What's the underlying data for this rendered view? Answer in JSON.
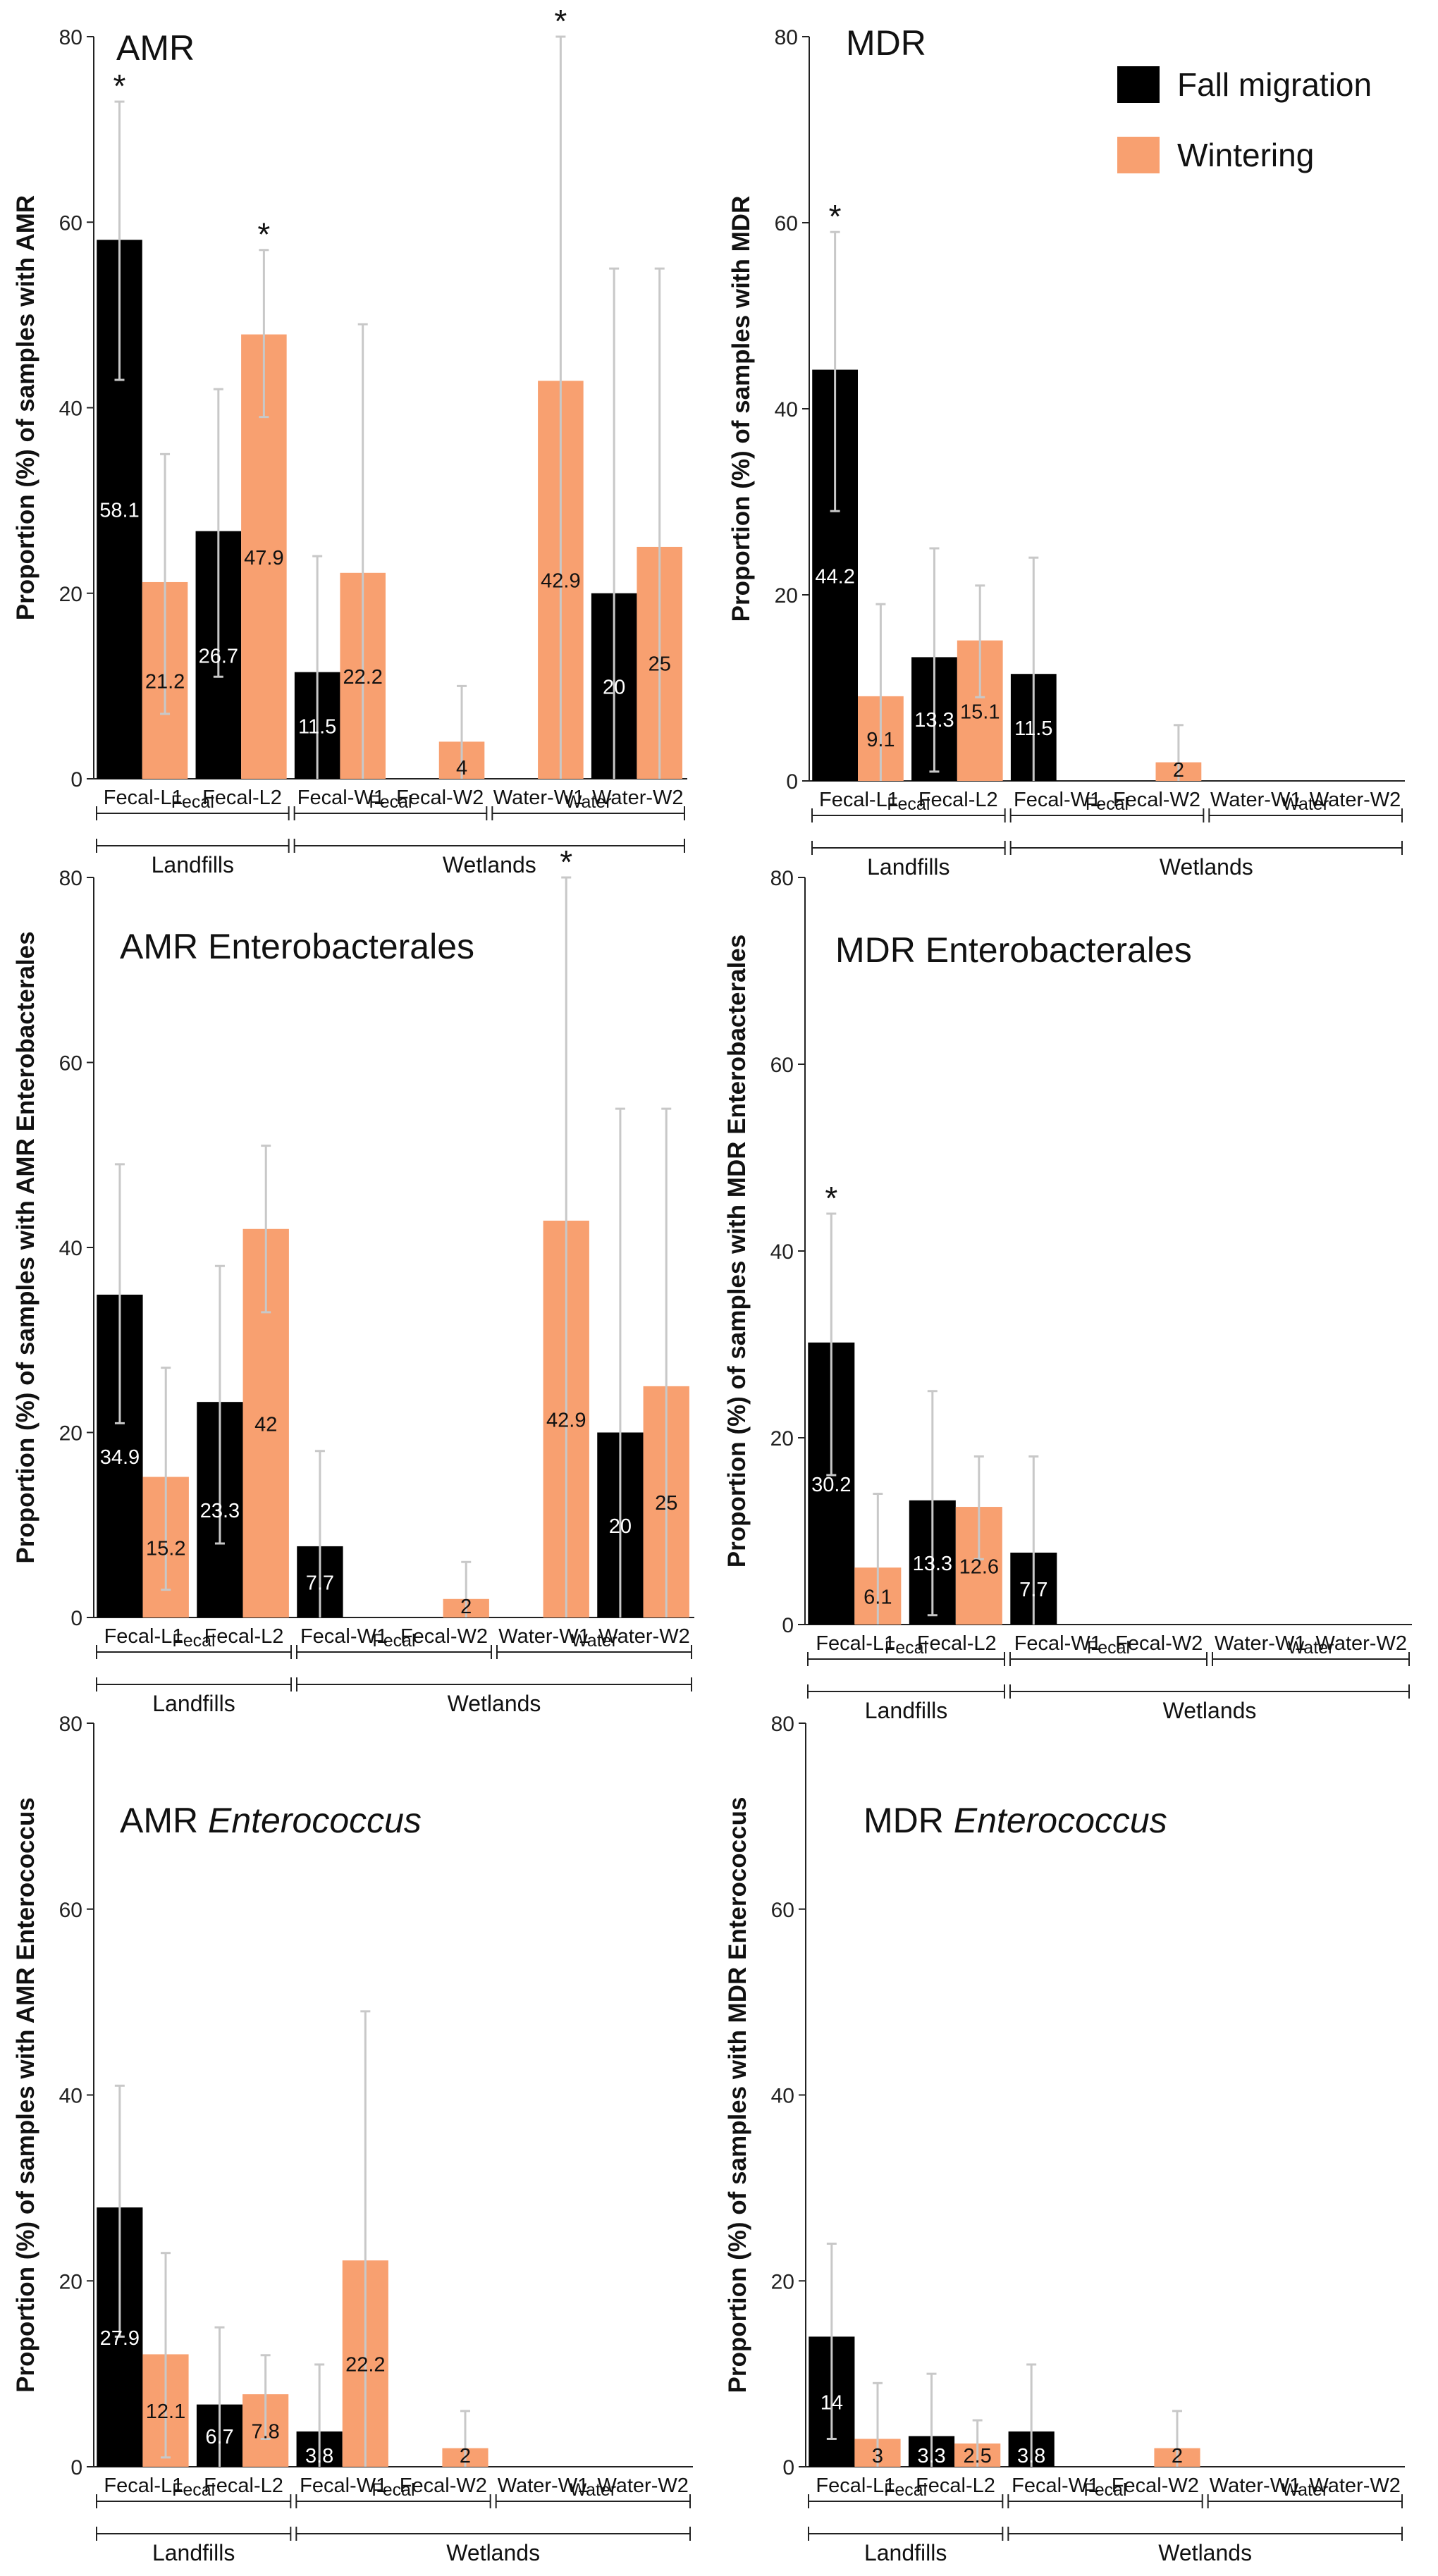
{
  "colors": {
    "fall": "#000000",
    "winter": "#f8a070",
    "error_bar": "#c8c8c8",
    "axis": "#222222"
  },
  "legend": {
    "items": [
      {
        "label": "Fall migration",
        "color": "#000000"
      },
      {
        "label": "Wintering",
        "color": "#f8a070"
      }
    ]
  },
  "chart_data": [
    {
      "type": "bar",
      "title": "AMR",
      "title_italic": "",
      "ylabel": "Proportion (%) of samples with AMR",
      "ylim": [
        0,
        80
      ],
      "yticks": [
        0,
        20,
        40,
        60,
        80
      ],
      "categories": [
        "Fecal-L1",
        "Fecal-L2",
        "Fecal-W1",
        "Fecal-W2",
        "Water-W1",
        "Water-W2"
      ],
      "groups": [
        {
          "label": "Landfills",
          "sublabels": [
            "Fecal"
          ]
        },
        {
          "label": "Wetlands",
          "sublabels": [
            "Fecal",
            "Water"
          ]
        }
      ],
      "series": [
        {
          "name": "Fall migration",
          "values": [
            58.1,
            26.7,
            11.5,
            0,
            0,
            20
          ],
          "ci_low": [
            43,
            11,
            0,
            null,
            null,
            0
          ],
          "ci_high": [
            73,
            42,
            24,
            null,
            null,
            55
          ]
        },
        {
          "name": "Wintering",
          "values": [
            21.2,
            47.9,
            22.2,
            4,
            42.9,
            25
          ],
          "ci_low": [
            7,
            39,
            0,
            0,
            0,
            0
          ],
          "ci_high": [
            35,
            57,
            49,
            10,
            80,
            55
          ]
        }
      ],
      "value_labels": [
        [
          "58.1",
          "26.7",
          "11.5",
          "",
          "",
          "20"
        ],
        [
          "21.2",
          "47.9",
          "22.2",
          "4",
          "42.9",
          "25"
        ]
      ],
      "significance": [
        [
          "*",
          "",
          "",
          "",
          "",
          ""
        ],
        [
          "",
          "*",
          "",
          "",
          "*",
          ""
        ]
      ]
    },
    {
      "type": "bar",
      "title": "MDR",
      "title_italic": "",
      "ylabel": "Proportion (%) of samples with MDR",
      "ylim": [
        0,
        80
      ],
      "yticks": [
        0,
        20,
        40,
        60,
        80
      ],
      "categories": [
        "Fecal-L1",
        "Fecal-L2",
        "Fecal-W1",
        "Fecal-W2",
        "Water-W1",
        "Water-W2"
      ],
      "groups": [
        {
          "label": "Landfills",
          "sublabels": [
            "Fecal"
          ]
        },
        {
          "label": "Wetlands",
          "sublabels": [
            "Fecal",
            "Water"
          ]
        }
      ],
      "series": [
        {
          "name": "Fall migration",
          "values": [
            44.2,
            13.3,
            11.5,
            0,
            0,
            0
          ],
          "ci_low": [
            29,
            1,
            0,
            null,
            null,
            null
          ],
          "ci_high": [
            59,
            25,
            24,
            null,
            null,
            null
          ]
        },
        {
          "name": "Wintering",
          "values": [
            9.1,
            15.1,
            0,
            2,
            0,
            0
          ],
          "ci_low": [
            0,
            9,
            null,
            0,
            null,
            null
          ],
          "ci_high": [
            19,
            21,
            null,
            6,
            null,
            null
          ]
        }
      ],
      "value_labels": [
        [
          "44.2",
          "13.3",
          "11.5",
          "",
          "",
          ""
        ],
        [
          "9.1",
          "15.1",
          "",
          "2",
          "",
          ""
        ]
      ],
      "significance": [
        [
          "*",
          "",
          "",
          "",
          "",
          ""
        ],
        [
          "",
          "",
          "",
          "",
          "",
          ""
        ]
      ]
    },
    {
      "type": "bar",
      "title": "AMR Enterobacterales",
      "title_italic": "",
      "ylabel": "Proportion (%) of samples with AMR Enterobacterales",
      "ylim": [
        0,
        80
      ],
      "yticks": [
        0,
        20,
        40,
        60,
        80
      ],
      "categories": [
        "Fecal-L1",
        "Fecal-L2",
        "Fecal-W1",
        "Fecal-W2",
        "Water-W1",
        "Water-W2"
      ],
      "groups": [
        {
          "label": "Landfills",
          "sublabels": [
            "Fecal"
          ]
        },
        {
          "label": "Wetlands",
          "sublabels": [
            "Fecal",
            "Water"
          ]
        }
      ],
      "series": [
        {
          "name": "Fall migration",
          "values": [
            34.9,
            23.3,
            7.7,
            0,
            0,
            20
          ],
          "ci_low": [
            21,
            8,
            0,
            null,
            null,
            0
          ],
          "ci_high": [
            49,
            38,
            18,
            null,
            null,
            55
          ]
        },
        {
          "name": "Wintering",
          "values": [
            15.2,
            42,
            0,
            2,
            42.9,
            25
          ],
          "ci_low": [
            3,
            33,
            null,
            0,
            0,
            0
          ],
          "ci_high": [
            27,
            51,
            null,
            6,
            80,
            55
          ]
        }
      ],
      "value_labels": [
        [
          "34.9",
          "23.3",
          "7.7",
          "",
          "",
          "20"
        ],
        [
          "15.2",
          "42",
          "",
          "2",
          "42.9",
          "25"
        ]
      ],
      "significance": [
        [
          "",
          "",
          "",
          "",
          "",
          ""
        ],
        [
          "",
          "",
          "",
          "",
          "*",
          ""
        ]
      ]
    },
    {
      "type": "bar",
      "title": "MDR Enterobacterales",
      "title_italic": "",
      "ylabel": "Proportion (%) of samples with MDR Enterobacterales",
      "ylim": [
        0,
        80
      ],
      "yticks": [
        0,
        20,
        40,
        60,
        80
      ],
      "categories": [
        "Fecal-L1",
        "Fecal-L2",
        "Fecal-W1",
        "Fecal-W2",
        "Water-W1",
        "Water-W2"
      ],
      "groups": [
        {
          "label": "Landfills",
          "sublabels": [
            "Fecal"
          ]
        },
        {
          "label": "Wetlands",
          "sublabels": [
            "Fecal",
            "Water"
          ]
        }
      ],
      "series": [
        {
          "name": "Fall migration",
          "values": [
            30.2,
            13.3,
            7.7,
            0,
            0,
            0
          ],
          "ci_low": [
            16,
            1,
            0,
            null,
            null,
            null
          ],
          "ci_high": [
            44,
            25,
            18,
            null,
            null,
            null
          ]
        },
        {
          "name": "Wintering",
          "values": [
            6.1,
            12.6,
            0,
            0,
            0,
            0
          ],
          "ci_low": [
            0,
            7,
            null,
            null,
            null,
            null
          ],
          "ci_high": [
            14,
            18,
            null,
            null,
            null,
            null
          ]
        }
      ],
      "value_labels": [
        [
          "30.2",
          "13.3",
          "7.7",
          "",
          "",
          ""
        ],
        [
          "6.1",
          "12.6",
          "",
          "",
          "",
          ""
        ]
      ],
      "significance": [
        [
          "*",
          "",
          "",
          "",
          "",
          ""
        ],
        [
          "",
          "",
          "",
          "",
          "",
          ""
        ]
      ]
    },
    {
      "type": "bar",
      "title": "AMR ",
      "title_italic": "Enterococcus",
      "ylabel": "Proportion (%) of samples with AMR Enterococcus",
      "ylim": [
        0,
        80
      ],
      "yticks": [
        0,
        20,
        40,
        60,
        80
      ],
      "categories": [
        "Fecal-L1",
        "Fecal-L2",
        "Fecal-W1",
        "Fecal-W2",
        "Water-W1",
        "Water-W2"
      ],
      "groups": [
        {
          "label": "Landfills",
          "sublabels": [
            "Fecal"
          ]
        },
        {
          "label": "Wetlands",
          "sublabels": [
            "Fecal",
            "Water"
          ]
        }
      ],
      "series": [
        {
          "name": "Fall migration",
          "values": [
            27.9,
            6.7,
            3.8,
            0,
            0,
            0
          ],
          "ci_low": [
            14,
            0,
            0,
            null,
            null,
            null
          ],
          "ci_high": [
            41,
            15,
            11,
            null,
            null,
            null
          ]
        },
        {
          "name": "Wintering",
          "values": [
            12.1,
            7.8,
            22.2,
            2,
            0,
            0
          ],
          "ci_low": [
            1,
            3,
            0,
            0,
            null,
            null
          ],
          "ci_high": [
            23,
            12,
            49,
            6,
            null,
            null
          ]
        }
      ],
      "value_labels": [
        [
          "27.9",
          "6.7",
          "3.8",
          "",
          "",
          ""
        ],
        [
          "12.1",
          "7.8",
          "22.2",
          "2",
          "",
          ""
        ]
      ],
      "significance": [
        [
          "",
          "",
          "",
          "",
          "",
          ""
        ],
        [
          "",
          "",
          "",
          "",
          "",
          ""
        ]
      ]
    },
    {
      "type": "bar",
      "title": "MDR ",
      "title_italic": "Enterococcus",
      "ylabel": "Proportion (%) of samples with MDR Enterococcus",
      "ylim": [
        0,
        80
      ],
      "yticks": [
        0,
        20,
        40,
        60,
        80
      ],
      "categories": [
        "Fecal-L1",
        "Fecal-L2",
        "Fecal-W1",
        "Fecal-W2",
        "Water-W1",
        "Water-W2"
      ],
      "groups": [
        {
          "label": "Landfills",
          "sublabels": [
            "Fecal"
          ]
        },
        {
          "label": "Wetlands",
          "sublabels": [
            "Fecal",
            "Water"
          ]
        }
      ],
      "series": [
        {
          "name": "Fall migration",
          "values": [
            14,
            3.3,
            3.8,
            0,
            0,
            0
          ],
          "ci_low": [
            3,
            0,
            0,
            null,
            null,
            null
          ],
          "ci_high": [
            24,
            10,
            11,
            null,
            null,
            null
          ]
        },
        {
          "name": "Wintering",
          "values": [
            3,
            2.5,
            0,
            2,
            0,
            0
          ],
          "ci_low": [
            0,
            0,
            null,
            0,
            null,
            null
          ],
          "ci_high": [
            9,
            5,
            null,
            6,
            null,
            null
          ]
        }
      ],
      "value_labels": [
        [
          "14",
          "3.3",
          "3.8",
          "",
          "",
          ""
        ],
        [
          "3",
          "2.5",
          "",
          "2",
          "",
          ""
        ]
      ],
      "significance": [
        [
          "",
          "",
          "",
          "",
          "",
          ""
        ],
        [
          "",
          "",
          "",
          "",
          "",
          ""
        ]
      ]
    }
  ]
}
